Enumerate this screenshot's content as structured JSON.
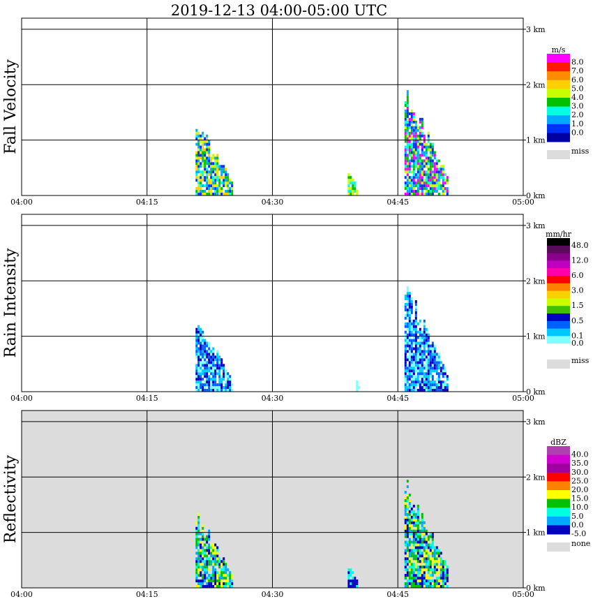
{
  "title": "2019-12-13   04:00-05:00 UTC",
  "time_ticks": [
    "04:00",
    "04:15",
    "04:30",
    "04:45",
    "05:00"
  ],
  "height_ticks": [
    "0 km",
    "1 km",
    "2 km",
    "3 km"
  ],
  "chart_data": [
    {
      "type": "heatmap",
      "ylabel": "Fall Velocity",
      "x_range": [
        "04:00",
        "05:00"
      ],
      "y_range_km": [
        0,
        3.2
      ],
      "grid": true,
      "background": "white",
      "legend": {
        "unit": "m/s",
        "labels": [
          "8.0",
          "7.0",
          "6.0",
          "5.0",
          "4.0",
          "3.0",
          "2.0",
          "1.0",
          "0.0"
        ],
        "colors": [
          "#ff00ff",
          "#ff1a00",
          "#ff8c00",
          "#ffd000",
          "#c8ff00",
          "#00c000",
          "#00ffe0",
          "#00a8ff",
          "#0030ff",
          "#0000a0"
        ],
        "missing_label": "miss",
        "missing_color": "#dcdcdc"
      },
      "echoes": [
        {
          "start_min": 20.8,
          "end_min": 25.3,
          "base_km": 0,
          "top_km": 1.35,
          "dominant": [
            "#00c000",
            "#c8ff00",
            "#ffd000",
            "#00ffe0",
            "#00a8ff",
            "#0030ff"
          ]
        },
        {
          "start_min": 45.8,
          "end_min": 51.0,
          "base_km": 0,
          "top_km": 1.95,
          "dominant": [
            "#00c000",
            "#c8ff00",
            "#00ffe0",
            "#00a8ff",
            "#0030ff",
            "#ff00ff"
          ]
        },
        {
          "start_min": 39.0,
          "end_min": 40.2,
          "base_km": 0,
          "top_km": 0.45,
          "dominant": [
            "#c8ff00",
            "#00ffe0",
            "#00c000"
          ]
        }
      ]
    },
    {
      "type": "heatmap",
      "ylabel": "Rain Intensity",
      "x_range": [
        "04:00",
        "05:00"
      ],
      "y_range_km": [
        0,
        3.2
      ],
      "grid": true,
      "background": "white",
      "legend": {
        "unit": "mm/hr",
        "labels": [
          "48.0",
          "",
          "12.0",
          "",
          "6.0",
          "",
          "3.0",
          "",
          "1.5",
          "",
          "0.5",
          "",
          "0.1",
          "0.0"
        ],
        "colors": [
          "#000000",
          "#5a0a5a",
          "#8b008b",
          "#c000c0",
          "#ff00aa",
          "#ff0000",
          "#ff8000",
          "#ffd000",
          "#c8ff00",
          "#40c000",
          "#0000c0",
          "#0060ff",
          "#00c8ff",
          "#80ffff",
          "#ffffff"
        ],
        "missing_label": "miss",
        "missing_color": "#dcdcdc"
      },
      "echoes": [
        {
          "start_min": 20.8,
          "end_min": 25.3,
          "base_km": 0,
          "top_km": 1.35,
          "dominant": [
            "#80ffff",
            "#00c8ff",
            "#0060ff",
            "#0000c0"
          ]
        },
        {
          "start_min": 45.8,
          "end_min": 51.0,
          "base_km": 0,
          "top_km": 1.95,
          "dominant": [
            "#80ffff",
            "#00c8ff",
            "#0060ff",
            "#0000c0"
          ]
        },
        {
          "start_min": 40.0,
          "end_min": 40.5,
          "base_km": 0,
          "top_km": 0.2,
          "dominant": [
            "#80ffff"
          ]
        }
      ]
    },
    {
      "type": "heatmap",
      "ylabel": "Reflectivity",
      "x_range": [
        "04:00",
        "05:00"
      ],
      "y_range_km": [
        0,
        3.2
      ],
      "grid": true,
      "background": "#dcdcdc",
      "legend": {
        "unit": "dBZ",
        "labels": [
          "40.0",
          "35.0",
          "30.0",
          "25.0",
          "20.0",
          "15.0",
          "10.0",
          "5.0",
          "0.0",
          "-5.0"
        ],
        "colors": [
          "#b040b0",
          "#d000d0",
          "#a000a0",
          "#ff0000",
          "#ff8000",
          "#ffff00",
          "#00c000",
          "#00ffe0",
          "#00a8ff",
          "#0000c0"
        ],
        "missing_label": "none",
        "missing_color": "#dcdcdc"
      },
      "echoes": [
        {
          "start_min": 20.8,
          "end_min": 25.3,
          "base_km": 0,
          "top_km": 1.35,
          "dominant": [
            "#00ffe0",
            "#00c000",
            "#ffff00",
            "#00a8ff",
            "#0000c0"
          ]
        },
        {
          "start_min": 45.8,
          "end_min": 51.0,
          "base_km": 0,
          "top_km": 1.95,
          "dominant": [
            "#00c000",
            "#00ffe0",
            "#ffff00",
            "#00a8ff",
            "#0000c0"
          ]
        },
        {
          "start_min": 39.0,
          "end_min": 40.2,
          "base_km": 0,
          "top_km": 0.4,
          "dominant": [
            "#00ffe0",
            "#0000c0"
          ]
        }
      ]
    }
  ]
}
